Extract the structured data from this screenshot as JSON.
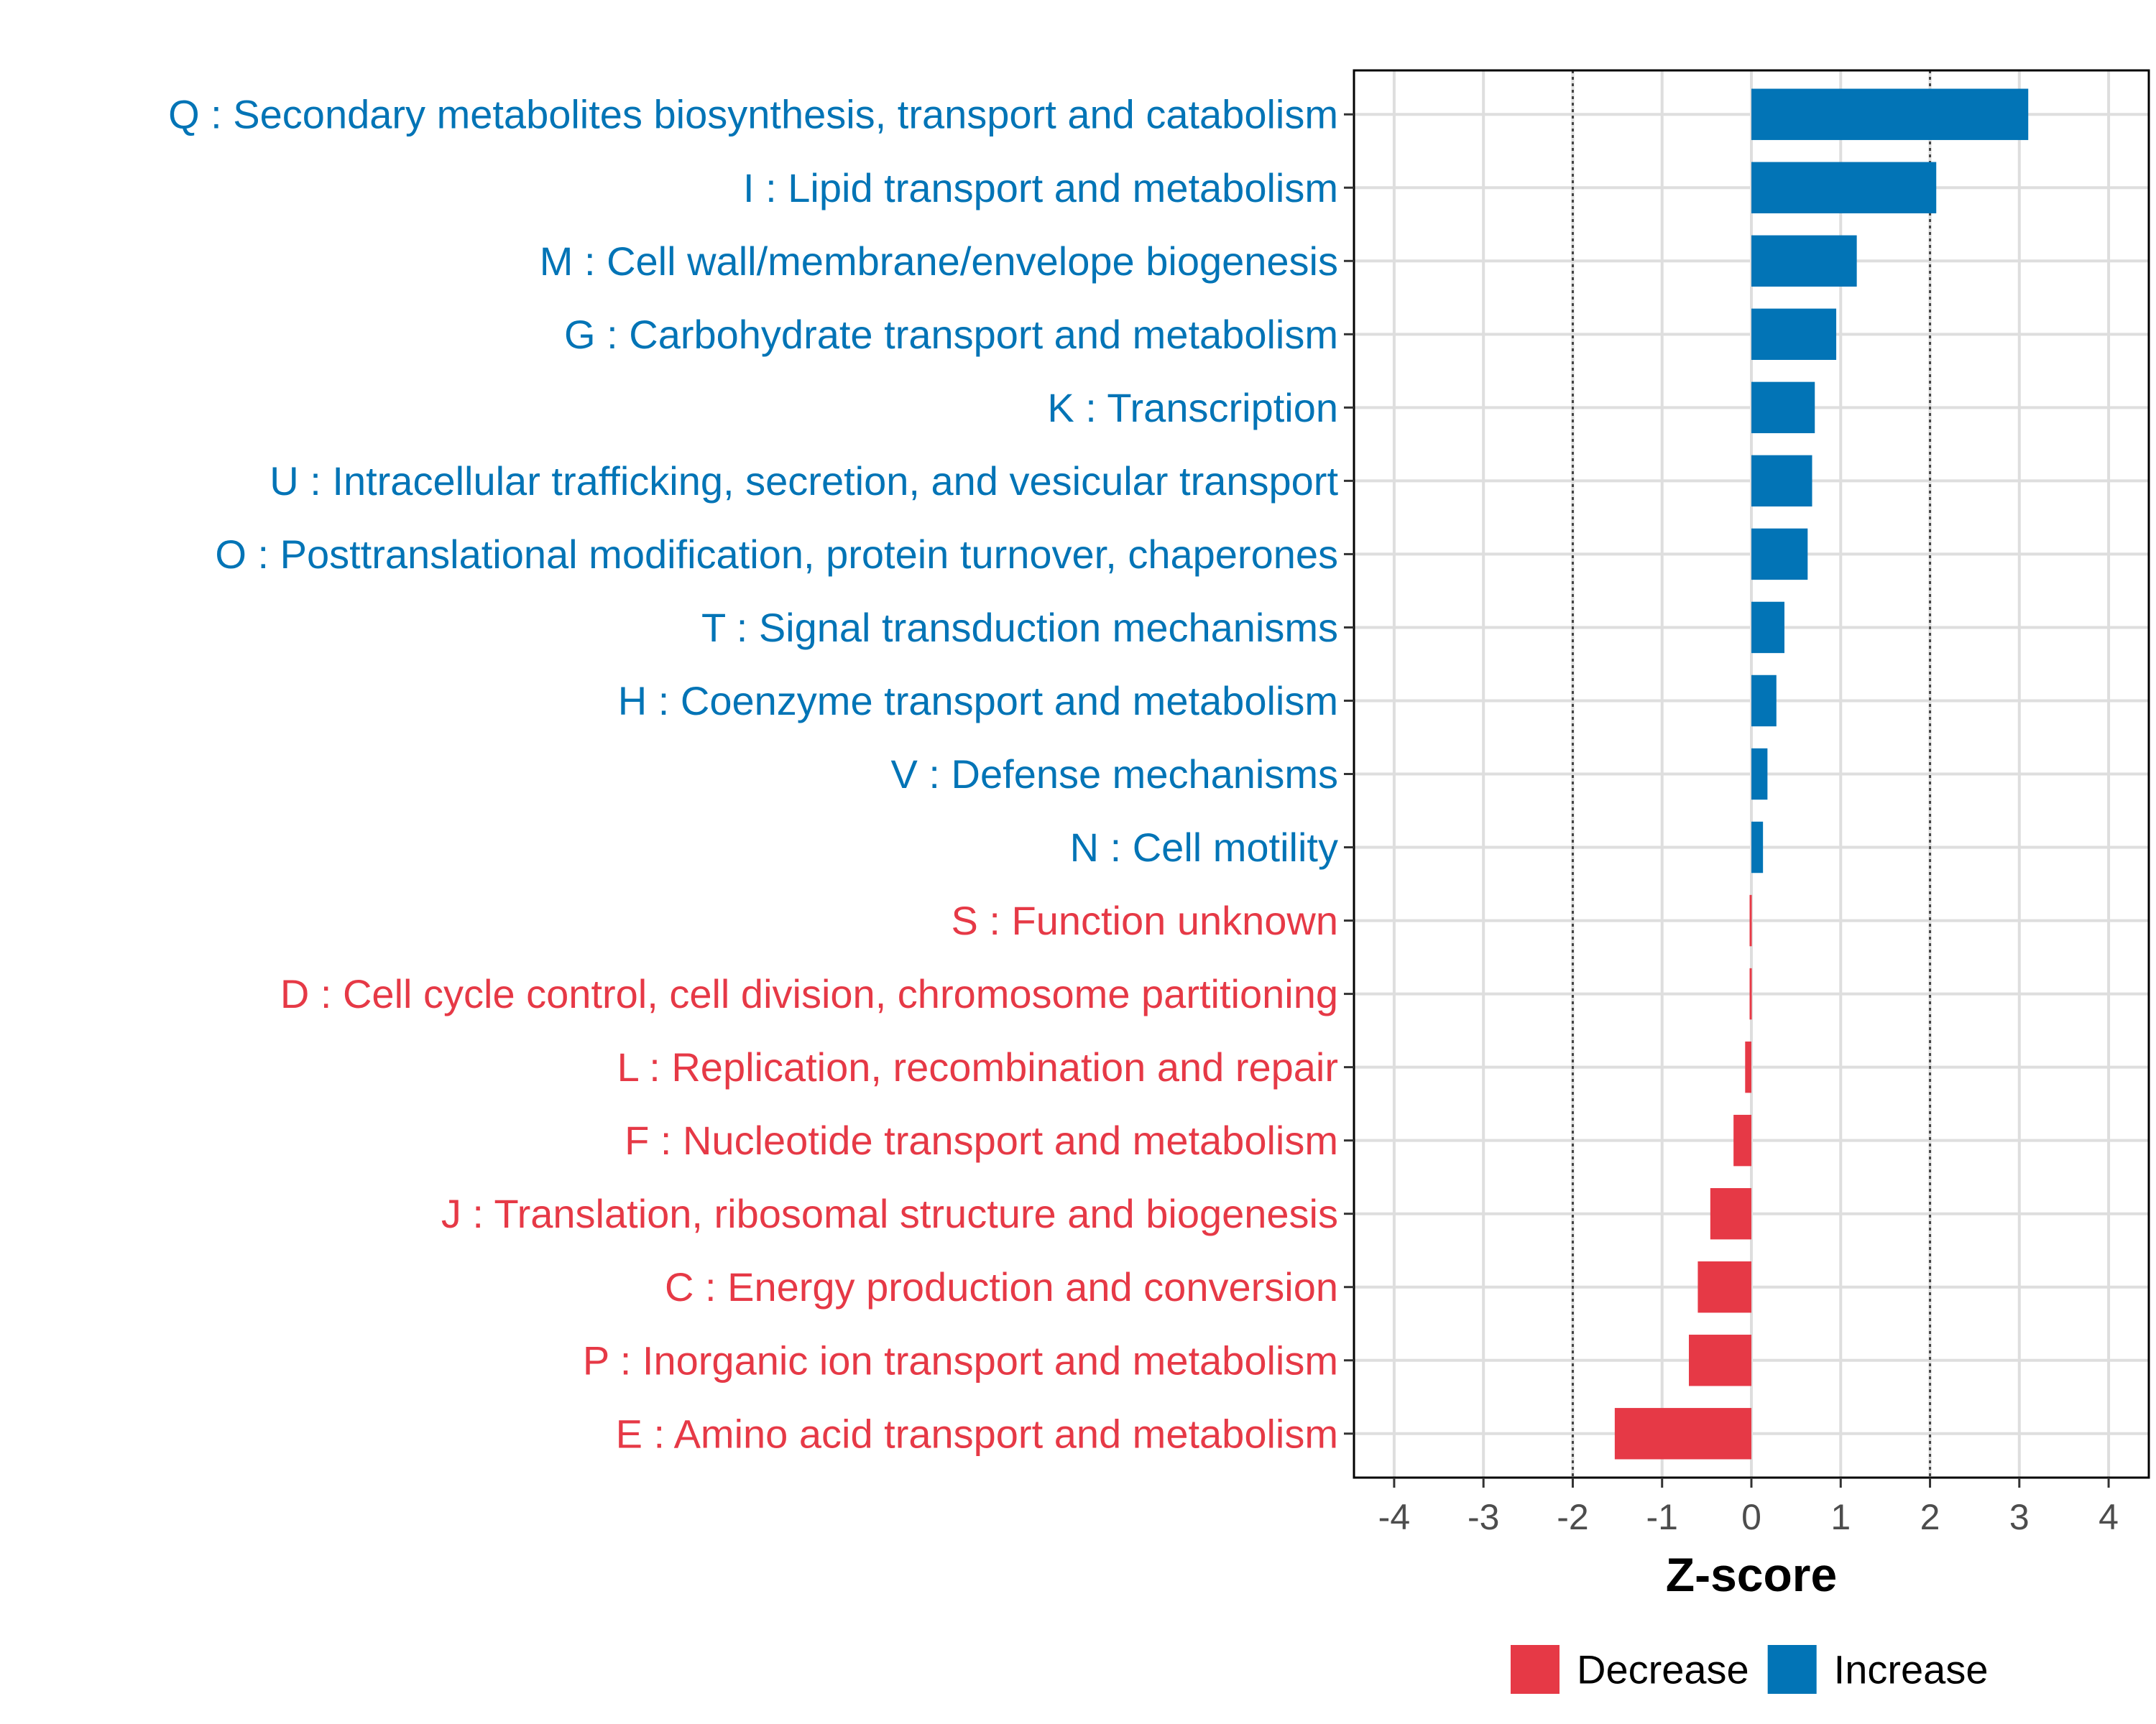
{
  "chart_data": {
    "type": "bar",
    "orientation": "horizontal",
    "categories": [
      "Q : Secondary metabolites biosynthesis, transport and catabolism",
      "I : Lipid transport and metabolism",
      "M : Cell wall/membrane/envelope biogenesis",
      "G : Carbohydrate transport and metabolism",
      "K : Transcription",
      "U : Intracellular trafficking, secretion, and vesicular transport",
      "O : Posttranslational modification, protein turnover, chaperones",
      "T : Signal transduction mechanisms",
      "H : Coenzyme transport and metabolism",
      "V : Defense mechanisms",
      "N : Cell motility",
      "S : Function unknown",
      "D : Cell cycle control, cell division, chromosome partitioning",
      "L : Replication, recombination and repair",
      "F : Nucleotide transport and metabolism",
      "J : Translation, ribosomal structure and biogenesis",
      "C : Energy production and conversion",
      "P : Inorganic ion transport and metabolism",
      "E : Amino acid transport and metabolism"
    ],
    "values": [
      3.1,
      2.07,
      1.18,
      0.95,
      0.71,
      0.68,
      0.63,
      0.37,
      0.28,
      0.18,
      0.13,
      -0.02,
      -0.02,
      -0.07,
      -0.2,
      -0.46,
      -0.6,
      -0.7,
      -1.53
    ],
    "groups": [
      "Increase",
      "Increase",
      "Increase",
      "Increase",
      "Increase",
      "Increase",
      "Increase",
      "Increase",
      "Increase",
      "Increase",
      "Increase",
      "Decrease",
      "Decrease",
      "Decrease",
      "Decrease",
      "Decrease",
      "Decrease",
      "Decrease",
      "Decrease"
    ],
    "xlabel": "Z-score",
    "ylabel": "",
    "xlim": [
      -4.45,
      4.45
    ],
    "xticks": [
      -4,
      -3,
      -2,
      -1,
      0,
      1,
      2,
      3,
      4
    ],
    "xtick_labels": [
      "-4",
      "-3",
      "-2",
      "-1",
      "0",
      "1",
      "2",
      "3",
      "4"
    ],
    "reference_lines": [
      -2,
      2
    ],
    "grid": true,
    "legend": {
      "position": "bottom",
      "entries": [
        {
          "label": "Decrease",
          "color": "#e63946"
        },
        {
          "label": "Increase",
          "color": "#0274b6"
        }
      ]
    },
    "colors": {
      "Increase": "#0274b6",
      "Decrease": "#e63946"
    }
  }
}
